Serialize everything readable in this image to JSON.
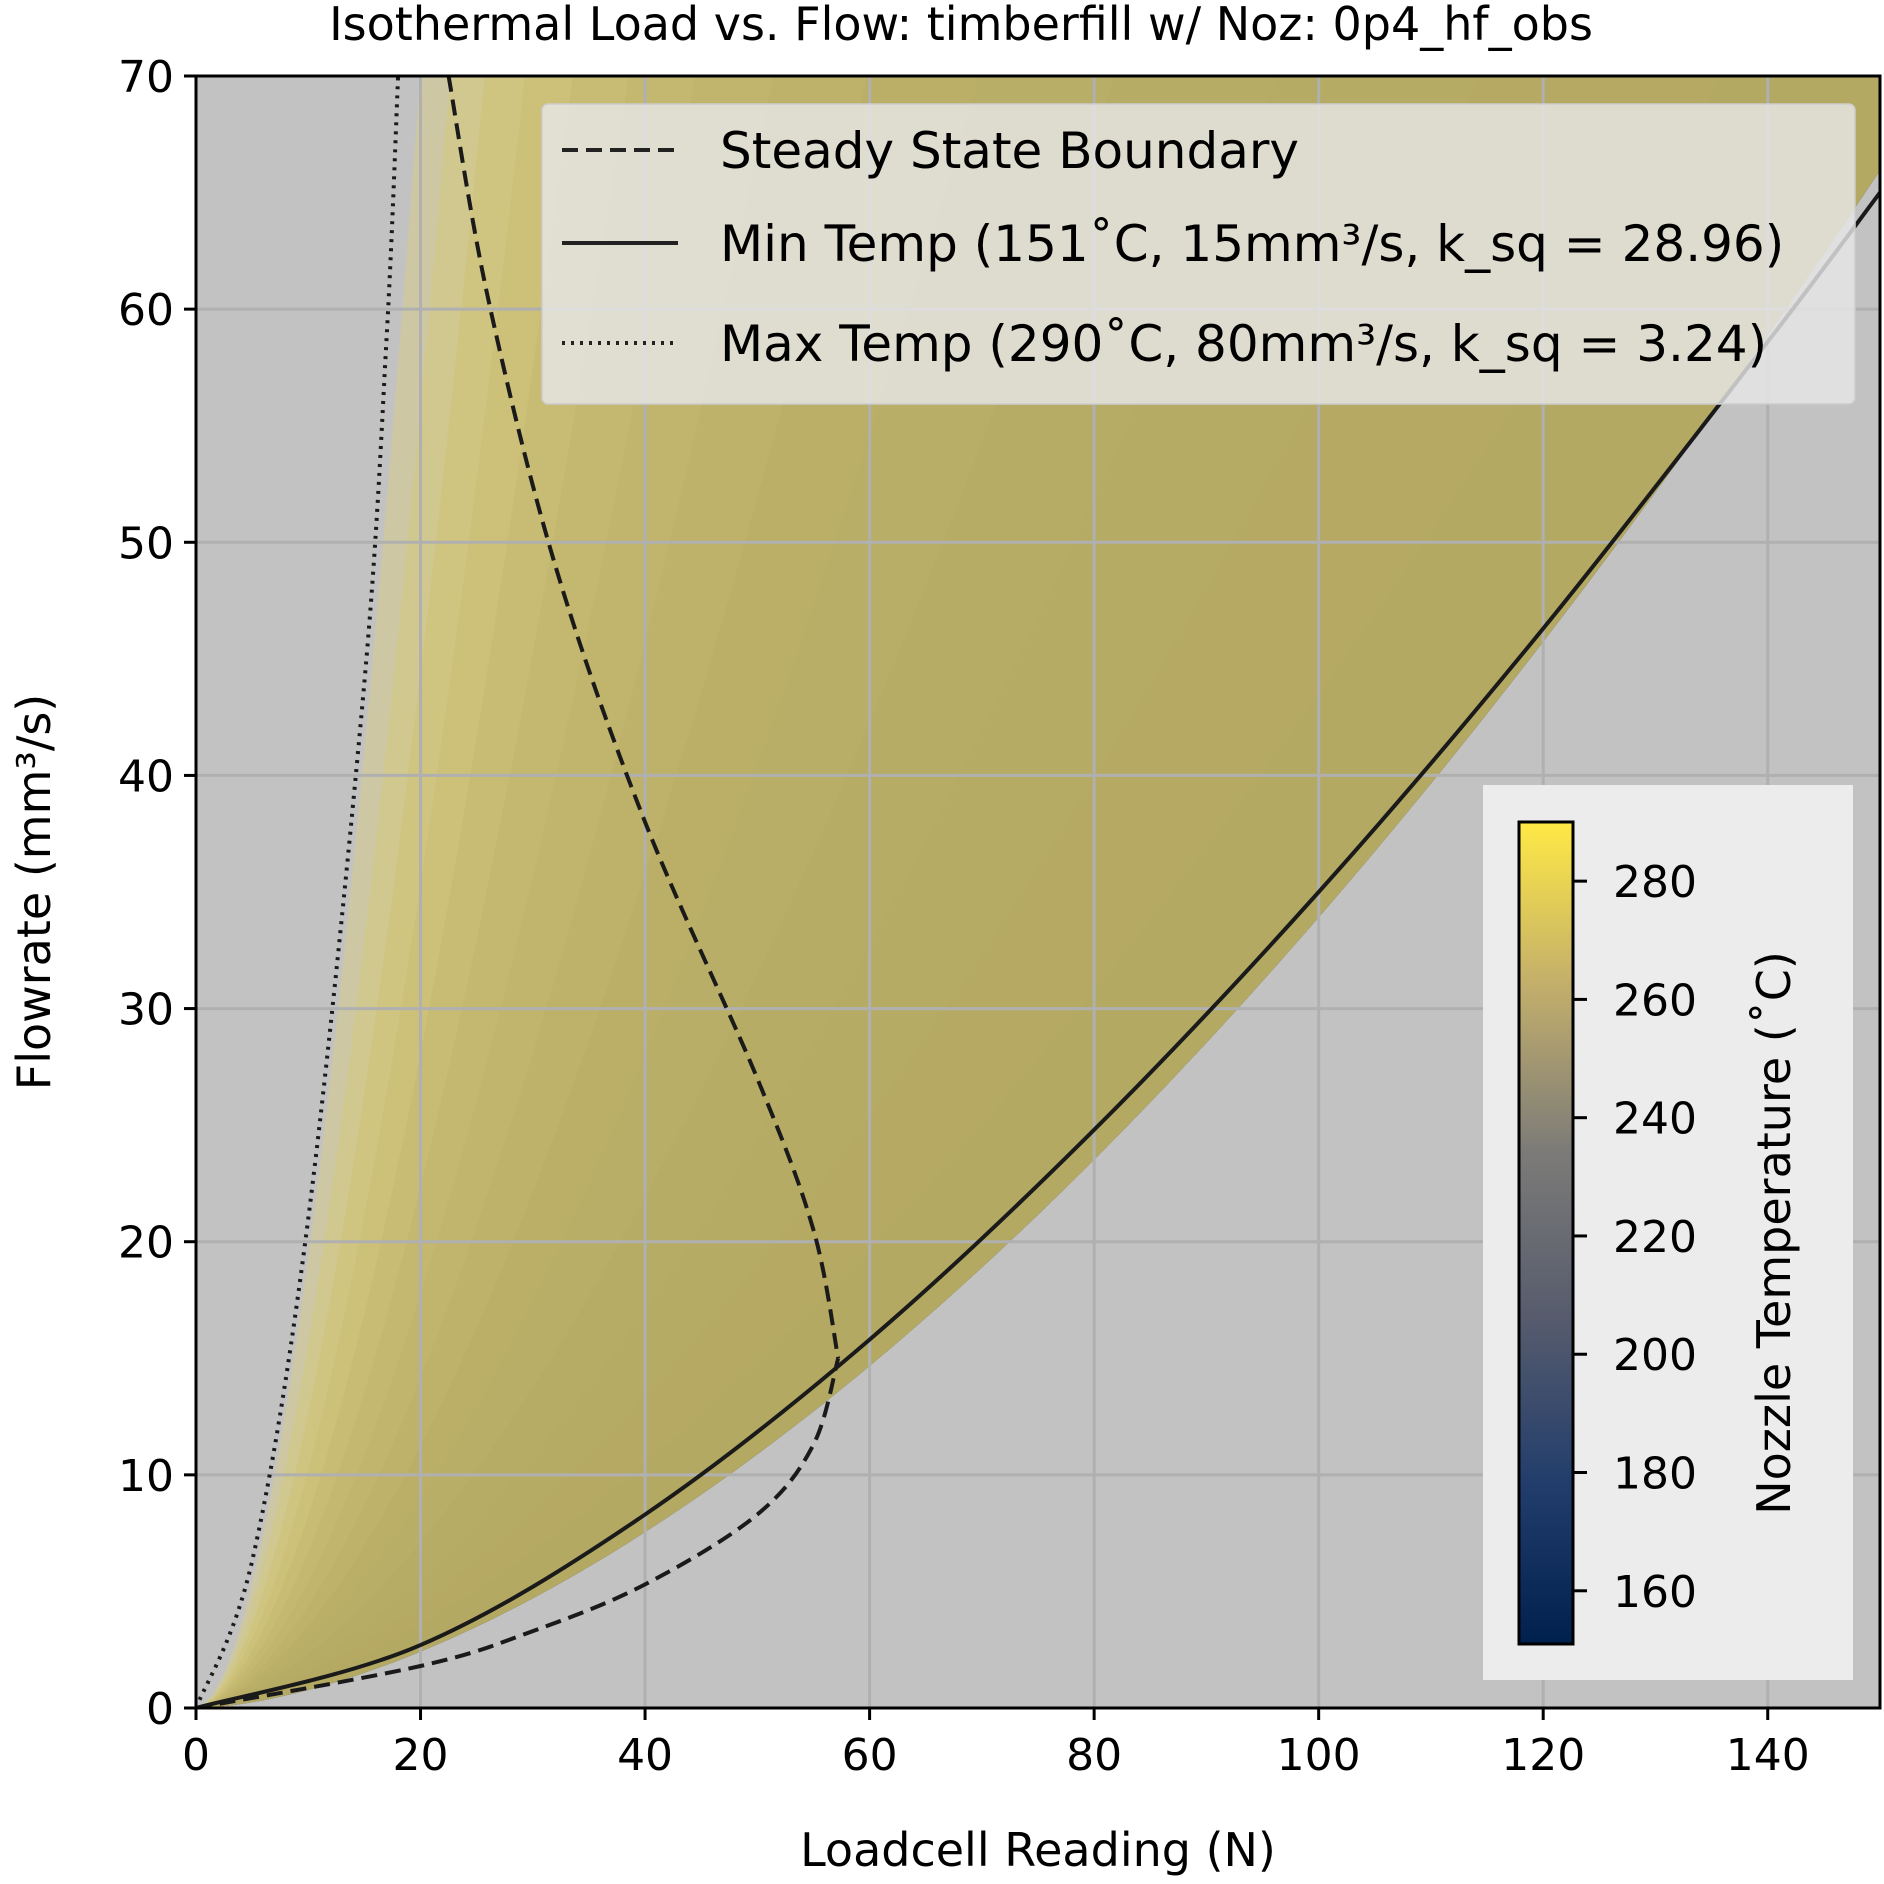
{
  "chart_data": {
    "type": "line",
    "title": "Isothermal Load vs. Flow: timberfill w/ Noz: 0p4_hf_obs",
    "xlabel": "Loadcell Reading (N)",
    "ylabel": "Flowrate (mm³/s)",
    "xlim": [
      0,
      150
    ],
    "ylim": [
      0,
      70
    ],
    "xticks": [
      0,
      20,
      40,
      60,
      80,
      100,
      120,
      140
    ],
    "yticks": [
      0,
      10,
      20,
      30,
      40,
      50,
      60,
      70
    ],
    "grid": true,
    "legend_position": "top-right",
    "legend": [
      {
        "style": "dashed",
        "label": "Steady State Boundary"
      },
      {
        "style": "solid",
        "label": "Min Temp (151˚C, 15mm³/s, k_sq = 28.96)"
      },
      {
        "style": "dotted",
        "label": "Max Temp (290˚C, 80mm³/s, k_sq = 3.24)"
      }
    ],
    "series": [
      {
        "name": "Min Temp (151˚C)",
        "style": "solid",
        "x": [
          0,
          20,
          40,
          60,
          80,
          100,
          120,
          140,
          150
        ],
        "y": [
          0,
          2.7,
          8.3,
          15.8,
          24.8,
          35.0,
          46.3,
          58.6,
          65.0
        ]
      },
      {
        "name": "Max Temp (290˚C)",
        "style": "dotted",
        "x": [
          0,
          5,
          10,
          15,
          17,
          18
        ],
        "y": [
          0,
          6.3,
          21.0,
          44.0,
          59.0,
          70.0
        ]
      },
      {
        "name": "Steady State Boundary (upper)",
        "style": "dashed",
        "x": [
          22.5,
          26,
          32,
          40,
          50,
          55,
          57.2
        ],
        "y": [
          70,
          60.5,
          49.0,
          38.0,
          27.0,
          20.5,
          15.0
        ]
      },
      {
        "name": "Steady State Boundary (lower)",
        "style": "dashed",
        "x": [
          0,
          20,
          30,
          40,
          50,
          55,
          57.2
        ],
        "y": [
          0,
          1.8,
          3.3,
          5.3,
          8.3,
          11.3,
          15.0
        ]
      }
    ],
    "colorbar": {
      "label": "Nozzle Temperature (˚C)",
      "range": [
        151,
        290
      ],
      "ticks": [
        160,
        180,
        200,
        220,
        240,
        260,
        280
      ],
      "colormap": "cividis"
    },
    "colors": {
      "background": "#c2c2c2",
      "cmap_low": "#00204d",
      "cmap_mid": "#7c7b78",
      "cmap_high": "#ffe945"
    }
  }
}
